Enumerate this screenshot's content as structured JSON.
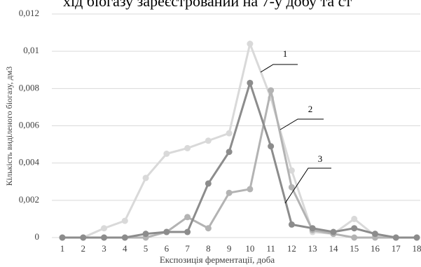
{
  "context_text": "хід біогазу зареєстрований на 7-у добу та ст",
  "chart_data": {
    "type": "line",
    "x_label": "Експозиція ферментації, доба",
    "y_label": "Кількість виділеного біогазу, дм3",
    "categories": [
      "1",
      "2",
      "3",
      "4",
      "5",
      "6",
      "7",
      "8",
      "9",
      "10",
      "11",
      "12",
      "13",
      "14",
      "15",
      "16",
      "17",
      "18"
    ],
    "series": [
      {
        "name": "1",
        "color": "#d9d9d9",
        "values": [
          0,
          0,
          0.0005,
          0.0009,
          0.0032,
          0.0045,
          0.0048,
          0.0052,
          0.0056,
          0.0104,
          0.0075,
          0.0036,
          0.0003,
          0.0002,
          0.001,
          0.0001,
          0,
          0
        ]
      },
      {
        "name": "2",
        "color": "#b3b3b3",
        "values": [
          0,
          0,
          0,
          0,
          0,
          0.0003,
          0.0011,
          0.0005,
          0.0024,
          0.0026,
          0.0079,
          0.0027,
          0.0004,
          0.0002,
          0,
          0,
          0,
          0
        ]
      },
      {
        "name": "3",
        "color": "#8c8c8c",
        "values": [
          0,
          0,
          0,
          0,
          0.0002,
          0.0003,
          0.0003,
          0.0029,
          0.0046,
          0.0083,
          0.0049,
          0.0007,
          0.0005,
          0.0003,
          0.0005,
          0.0002,
          0,
          0
        ]
      }
    ],
    "ylim": [
      0,
      0.012
    ],
    "yticks": [
      0,
      {
        "value": 0.002,
        "label": "0,002"
      },
      {
        "value": 0.004,
        "label": "0,004"
      },
      {
        "value": 0.006,
        "label": "0,006"
      },
      {
        "value": 0.008,
        "label": "0,008"
      },
      {
        "value": 0.01,
        "label": "0,01"
      },
      {
        "value": 0.012,
        "label": "0,012"
      }
    ],
    "grid": true
  }
}
